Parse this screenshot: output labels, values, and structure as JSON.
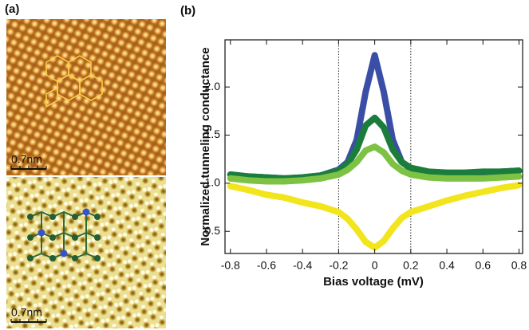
{
  "panel_labels": [
    "(a)",
    "(b)"
  ],
  "images": [
    {
      "scale_label": "0.7nm"
    },
    {
      "scale_label": "0.7nm"
    }
  ],
  "chart_data": {
    "type": "line",
    "x_label": "Bias voltage (mV)",
    "y_label": "Normalized tunneling conductance",
    "x": [
      -0.8,
      -0.7,
      -0.6,
      -0.5,
      -0.4,
      -0.3,
      -0.2,
      -0.15,
      -0.1,
      -0.05,
      0,
      0.05,
      0.1,
      0.15,
      0.2,
      0.3,
      0.4,
      0.5,
      0.6,
      0.7,
      0.8
    ],
    "series": [
      {
        "color": "#f2e51e",
        "values": [
          0.97,
          0.93,
          0.88,
          0.85,
          0.8,
          0.76,
          0.7,
          0.63,
          0.52,
          0.39,
          0.33,
          0.4,
          0.53,
          0.64,
          0.7,
          0.76,
          0.82,
          0.87,
          0.91,
          0.95,
          0.98
        ]
      },
      {
        "color": "#3a4ea6",
        "values": [
          1.09,
          1.07,
          1.06,
          1.05,
          1.06,
          1.08,
          1.14,
          1.22,
          1.45,
          1.95,
          2.33,
          1.95,
          1.45,
          1.22,
          1.15,
          1.1,
          1.1,
          1.1,
          1.11,
          1.12,
          1.13
        ]
      },
      {
        "color": "#1b7d3c",
        "values": [
          1.09,
          1.07,
          1.06,
          1.05,
          1.06,
          1.08,
          1.13,
          1.2,
          1.35,
          1.6,
          1.68,
          1.58,
          1.35,
          1.22,
          1.16,
          1.12,
          1.11,
          1.11,
          1.12,
          1.12,
          1.13
        ]
      },
      {
        "color": "#7dc243",
        "values": [
          1.05,
          1.03,
          1.02,
          1.02,
          1.03,
          1.05,
          1.09,
          1.14,
          1.22,
          1.34,
          1.38,
          1.32,
          1.2,
          1.13,
          1.09,
          1.06,
          1.05,
          1.05,
          1.05,
          1.06,
          1.07
        ]
      }
    ],
    "xlim": [
      -0.83,
      0.82
    ],
    "ylim": [
      0.27,
      2.49
    ],
    "xticks": [
      -0.8,
      -0.6,
      -0.4,
      -0.2,
      0,
      0.2,
      0.4,
      0.6,
      0.8
    ],
    "yticks": [
      0.5,
      {
        "value": 1,
        "label": "1.0"
      },
      1.5,
      {
        "value": 2,
        "label": "2.0"
      }
    ],
    "vlines": [
      -0.2,
      0.2
    ]
  }
}
